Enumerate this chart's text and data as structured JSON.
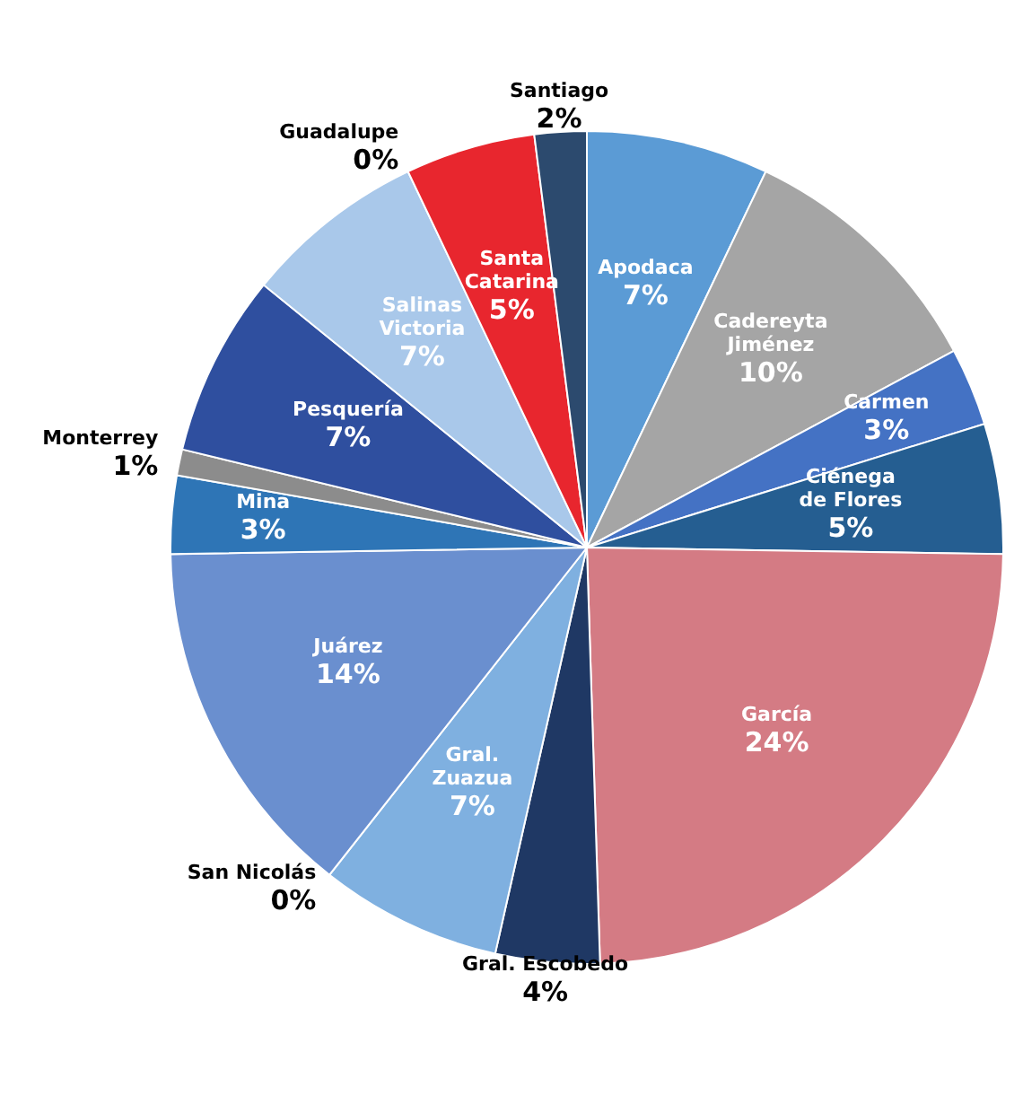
{
  "chart_data": {
    "type": "pie",
    "categories": [
      "Apodaca",
      "Cadereyta Jiménez",
      "Carmen",
      "Ciénega de Flores",
      "García",
      "Gral. Escobedo",
      "Gral. Zuazua",
      "San Nicolás",
      "Juárez",
      "Mina",
      "Monterrey",
      "Pesquería",
      "Salinas Victoria",
      "Guadalupe",
      "Santa Catarina",
      "Santiago"
    ],
    "values": [
      7,
      10,
      3,
      5,
      24,
      4,
      7,
      0,
      14,
      3,
      1,
      7,
      7,
      0,
      5,
      2
    ],
    "value_labels": [
      "7%",
      "10%",
      "3%",
      "5%",
      "24%",
      "4%",
      "7%",
      "0%",
      "14%",
      "3%",
      "1%",
      "7%",
      "7%",
      "0%",
      "5%",
      "2%"
    ],
    "colors": [
      "#5b9bd5",
      "#a5a5a5",
      "#4472c4",
      "#255e91",
      "#d47b84",
      "#1f3864",
      "#7fb0e0",
      "#a5a5a5",
      "#6a8fcf",
      "#2e75b6",
      "#8c8c8c",
      "#2f4f9f",
      "#a9c8ea",
      "#c0c0c0",
      "#e8262e",
      "#2c4a6e"
    ]
  }
}
